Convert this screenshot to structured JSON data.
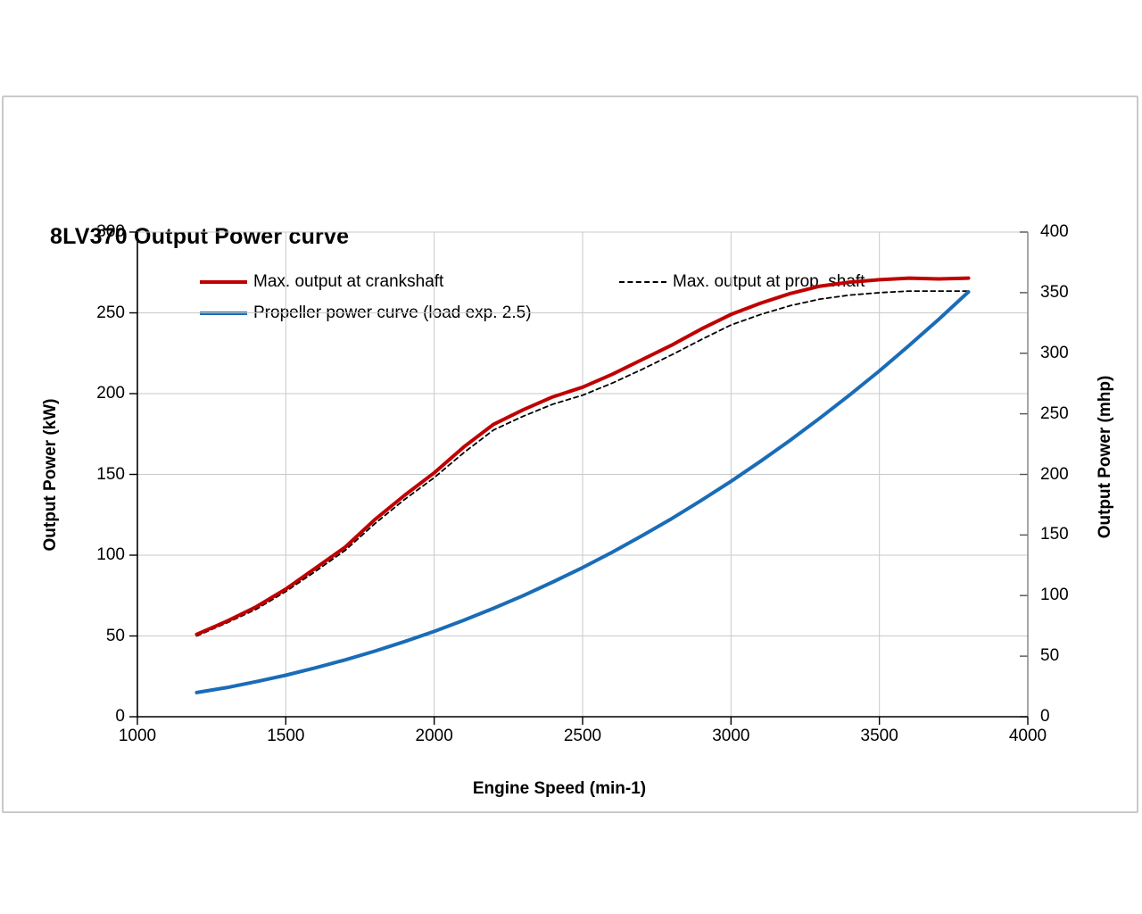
{
  "chart_data": {
    "type": "line",
    "title": "8LV370 Output Power curve",
    "xlabel": "Engine Speed (min-1)",
    "ylabel_left": "Output Power (kW)",
    "ylabel_right": "Output Power (mhp)",
    "x_axis": {
      "min": 1000,
      "max": 4000,
      "ticks": [
        1000,
        1500,
        2000,
        2500,
        3000,
        3500,
        4000
      ]
    },
    "y_axis_left": {
      "min": 0,
      "max": 300,
      "ticks": [
        0,
        50,
        100,
        150,
        200,
        250,
        300
      ]
    },
    "y_axis_right": {
      "min": 0,
      "max": 400,
      "ticks": [
        0,
        50,
        100,
        150,
        200,
        250,
        300,
        350,
        400
      ]
    },
    "grid": true,
    "legend_position": "top",
    "x": [
      1200,
      1300,
      1400,
      1500,
      1600,
      1700,
      1800,
      1900,
      2000,
      2100,
      2200,
      2300,
      2400,
      2500,
      2600,
      2700,
      2800,
      2900,
      3000,
      3100,
      3200,
      3300,
      3400,
      3500,
      3600,
      3700,
      3800
    ],
    "series": [
      {
        "name": "Max. output at crankshaft",
        "style": "solid",
        "color": "#c00000",
        "stroke_width": 4,
        "values": [
          51,
          59,
          68,
          79,
          92,
          105,
          122,
          137,
          151,
          167,
          181,
          190,
          198,
          204,
          212,
          221,
          230,
          240,
          249,
          256,
          262,
          266.5,
          269,
          270.5,
          271.5,
          271,
          271.5
        ]
      },
      {
        "name": "Max. output at prop. shaft",
        "style": "dashed",
        "color": "#000000",
        "stroke_width": 1.8,
        "values": [
          50,
          58,
          66.5,
          77.5,
          90,
          103,
          119.5,
          134.5,
          148,
          163.5,
          177.5,
          186,
          193.5,
          199,
          206.5,
          215,
          224,
          233.5,
          242.5,
          249,
          254.5,
          258.5,
          261,
          262.5,
          263.5,
          263.5,
          263.5
        ]
      },
      {
        "name": "Propeller power curve (load exp. 2.5)",
        "style": "solid",
        "color": "#1a6cb7",
        "stroke_width": 4,
        "values": [
          15,
          18,
          21.7,
          25.7,
          30.3,
          35.2,
          40.6,
          46.5,
          52.8,
          59.7,
          67.1,
          75,
          83.4,
          92.3,
          101.9,
          112,
          122.6,
          133.9,
          145.7,
          158.2,
          171.2,
          184.9,
          199.2,
          214.1,
          229.8,
          246,
          263
        ]
      }
    ]
  },
  "colors": {
    "grid": "#c9c9c9",
    "axis": "#000000",
    "right_axis_line": "#808080",
    "right_axis_tick": "#555555",
    "card_border": "#c9c9c9"
  }
}
